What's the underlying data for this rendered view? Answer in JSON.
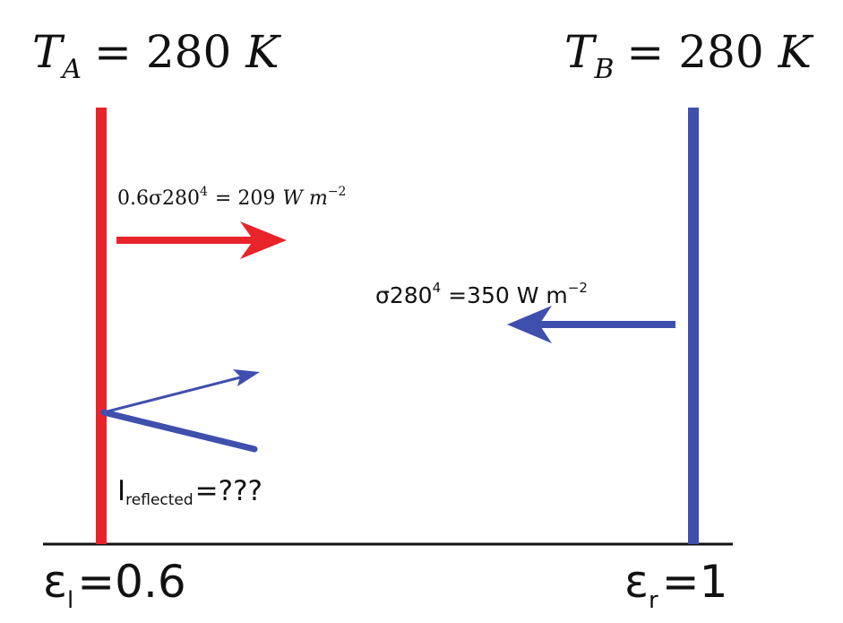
{
  "colors": {
    "left_wall": "#e8232a",
    "right_wall": "#3f4fad",
    "ground": "#111111",
    "text": "#111111"
  },
  "labels": {
    "temp_a": {
      "symbol": "T",
      "subscript": "A",
      "equals": "= 280",
      "unit": "K"
    },
    "temp_b": {
      "symbol": "T",
      "subscript": "B",
      "equals": "= 280",
      "unit": "K"
    },
    "emitted_flux": {
      "coef": "0.6σ280",
      "exponent": "4",
      "equals": "= 209",
      "unit": "W m",
      "unit_exponent": "−2"
    },
    "incoming_flux": {
      "base": "σ280",
      "exponent": "4",
      "equals": "=350 W m",
      "unit_exponent": "−2"
    },
    "reflected": {
      "symbol": "I",
      "subscript": "reflected",
      "equals": "=???"
    },
    "emissivity_left": {
      "symbol": "ε",
      "subscript": "l",
      "equals": "=0.6"
    },
    "emissivity_right": {
      "symbol": "ε",
      "subscript": "r",
      "equals": "=1"
    }
  }
}
